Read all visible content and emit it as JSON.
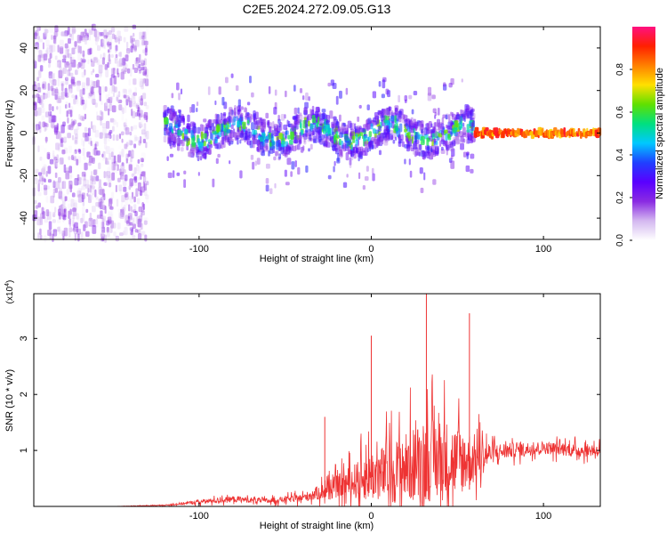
{
  "title": "C2E5.2024.272.09.05.G13",
  "chart_data": [
    {
      "type": "heatmap",
      "title": "C2E5.2024.272.09.05.G13",
      "xlabel": "Height of straight line (km)",
      "ylabel": "Frequency (Hz)",
      "xlim": [
        -196,
        133
      ],
      "ylim": [
        -50,
        50
      ],
      "xticks": [
        -100,
        0,
        100
      ],
      "yticks": [
        -40,
        -20,
        0,
        20,
        40
      ],
      "colorbar": {
        "label": "Normalized spectral amplitude",
        "range": [
          0,
          1
        ],
        "ticks": [
          0.0,
          0.2,
          0.4,
          0.6,
          0.8
        ],
        "colors": [
          "#ffffff",
          "#d4b8f0",
          "#8a2be2",
          "#5a00ff",
          "#2040ff",
          "#00c8ff",
          "#00e080",
          "#60e000",
          "#ffe000",
          "#ff8000",
          "#ff2000",
          "#ff1080"
        ]
      },
      "features": [
        {
          "x_range": [
            -196,
            -130
          ],
          "freq_range": [
            -50,
            50
          ],
          "amplitude": 0.15
        },
        {
          "x_range": [
            -120,
            60
          ],
          "freq_center": 0,
          "freq_halfwidth": 8,
          "amplitude": 0.45
        },
        {
          "x_range": [
            60,
            133
          ],
          "freq_center": 0,
          "freq_halfwidth": 2,
          "amplitude": 0.9
        }
      ]
    },
    {
      "type": "line",
      "xlabel": "Height of straight line (km)",
      "ylabel": "SNR (10 * v/v)",
      "y_multiplier": "(x10^4)",
      "xlim": [
        -196,
        133
      ],
      "ylim": [
        0,
        3.8
      ],
      "xticks": [
        -100,
        0,
        100
      ],
      "yticks": [
        1,
        2,
        3
      ],
      "color": "#ee3333",
      "envelope": {
        "x": [
          -196,
          -150,
          -120,
          -100,
          -80,
          -60,
          -40,
          -30,
          -20,
          -10,
          0,
          10,
          20,
          30,
          40,
          50,
          60,
          70,
          80,
          100,
          120,
          133
        ],
        "mean": [
          0.0,
          0.0,
          0.02,
          0.08,
          0.13,
          0.1,
          0.15,
          0.25,
          0.35,
          0.45,
          0.55,
          0.6,
          0.7,
          0.8,
          0.85,
          0.8,
          0.85,
          0.95,
          1.0,
          1.05,
          1.0,
          1.0
        ],
        "spread": [
          0.0,
          0.0,
          0.02,
          0.08,
          0.12,
          0.1,
          0.15,
          0.3,
          0.45,
          0.7,
          1.0,
          1.2,
          1.4,
          1.6,
          1.7,
          1.4,
          1.0,
          0.4,
          0.3,
          0.25,
          0.25,
          0.25
        ]
      },
      "spikes": [
        {
          "x": -27,
          "y": 1.6
        },
        {
          "x": 0,
          "y": 3.05
        },
        {
          "x": 32,
          "y": 3.8
        },
        {
          "x": 57,
          "y": 3.45
        }
      ]
    }
  ]
}
